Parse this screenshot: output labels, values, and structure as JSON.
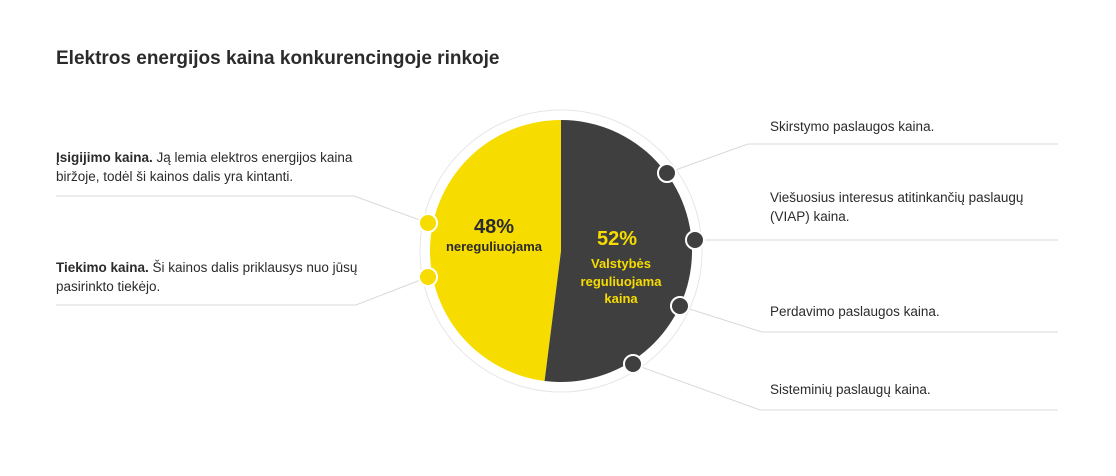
{
  "title": "Elektros energijos kaina konkurencingoje rinkoje",
  "colors": {
    "yellow": "#f7dc00",
    "dark": "#3f3f3f",
    "text": "#2b2b2b",
    "line": "#d9d9d9"
  },
  "left_items": [
    {
      "term": "Įsigijimo kaina.",
      "text": " Ją lemia elektros energijos kaina biržoje, todėl ši kainos dalis yra kintanti."
    },
    {
      "term": "Tiekimo kaina.",
      "text": " Ši kainos dalis priklausys nuo jūsų pasirinkto tiekėjo."
    }
  ],
  "right_items": [
    "Skirstymo paslaugos kaina.",
    "Viešuosius interesus atitinkančių paslaugų (VIAP) kaina.",
    "Perdavimo paslaugos kaina.",
    "Sisteminių paslaugų kaina."
  ],
  "chart_data": {
    "type": "pie",
    "slices": [
      {
        "value": 48,
        "value_label": "48%",
        "label_lines": [
          "nereguliuojama"
        ],
        "color": "#f7dc00"
      },
      {
        "value": 52,
        "value_label": "52%",
        "label_lines": [
          "Valstybės",
          "reguliuojama",
          "kaina"
        ],
        "color": "#3f3f3f"
      }
    ]
  }
}
